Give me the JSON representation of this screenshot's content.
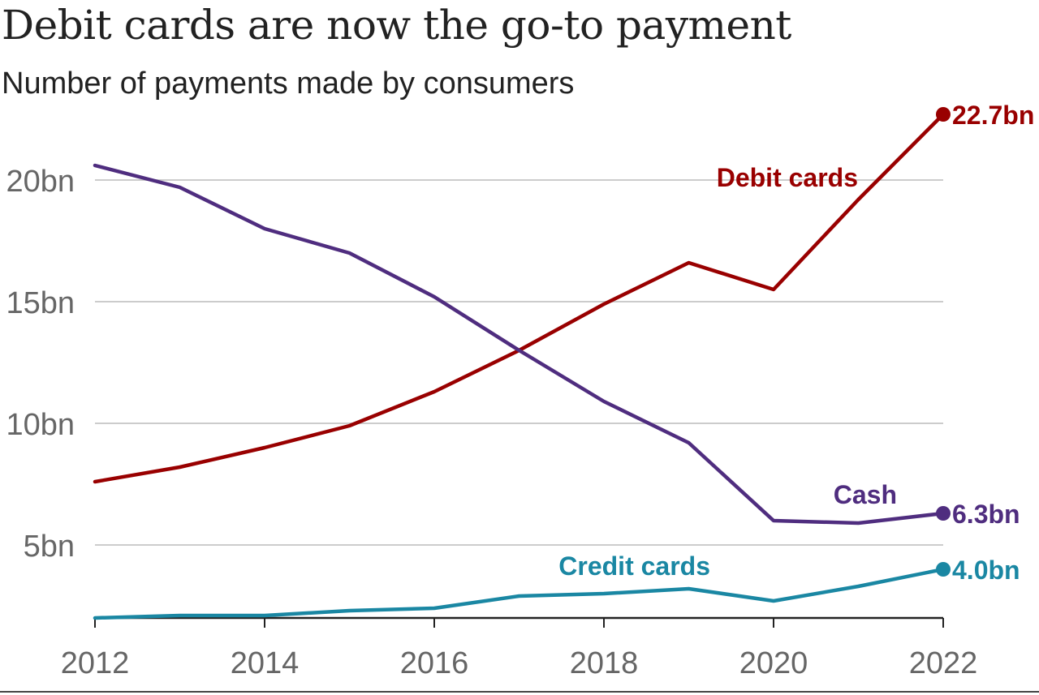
{
  "header": {
    "title": "Debit cards are now the go-to payment",
    "subtitle": "Number of payments made by consumers"
  },
  "colors": {
    "debit": "#990000",
    "cash": "#4f2d7f",
    "credit": "#1a87a3",
    "grid": "#cccccc",
    "axis": "#222222"
  },
  "chart_data": {
    "type": "line",
    "title": "Debit cards are now the go-to payment",
    "subtitle": "Number of payments made by consumers",
    "xlabel": "",
    "ylabel": "",
    "x": [
      2012,
      2013,
      2014,
      2015,
      2016,
      2017,
      2018,
      2019,
      2020,
      2021,
      2022
    ],
    "xlim": [
      2012,
      2022
    ],
    "ylim": [
      2,
      22.7
    ],
    "x_ticks": [
      "2012",
      "2014",
      "2016",
      "2018",
      "2020",
      "2022"
    ],
    "y_ticks": [
      "5bn",
      "10bn",
      "15bn",
      "20bn"
    ],
    "y_tick_values": [
      5,
      10,
      15,
      20
    ],
    "grid": true,
    "series": [
      {
        "name": "Debit cards",
        "values": [
          7.6,
          8.2,
          9.0,
          9.9,
          11.3,
          13.0,
          14.9,
          16.6,
          15.5,
          19.2,
          22.7
        ],
        "end_label": "22.7bn"
      },
      {
        "name": "Cash",
        "values": [
          20.6,
          19.7,
          18.0,
          17.0,
          15.2,
          13.0,
          10.9,
          9.2,
          6.0,
          5.9,
          6.3
        ],
        "end_label": "6.3bn"
      },
      {
        "name": "Credit cards",
        "values": [
          2.0,
          2.1,
          2.1,
          2.3,
          2.4,
          2.9,
          3.0,
          3.2,
          2.7,
          3.3,
          4.0
        ],
        "end_label": "4.0bn"
      }
    ]
  }
}
